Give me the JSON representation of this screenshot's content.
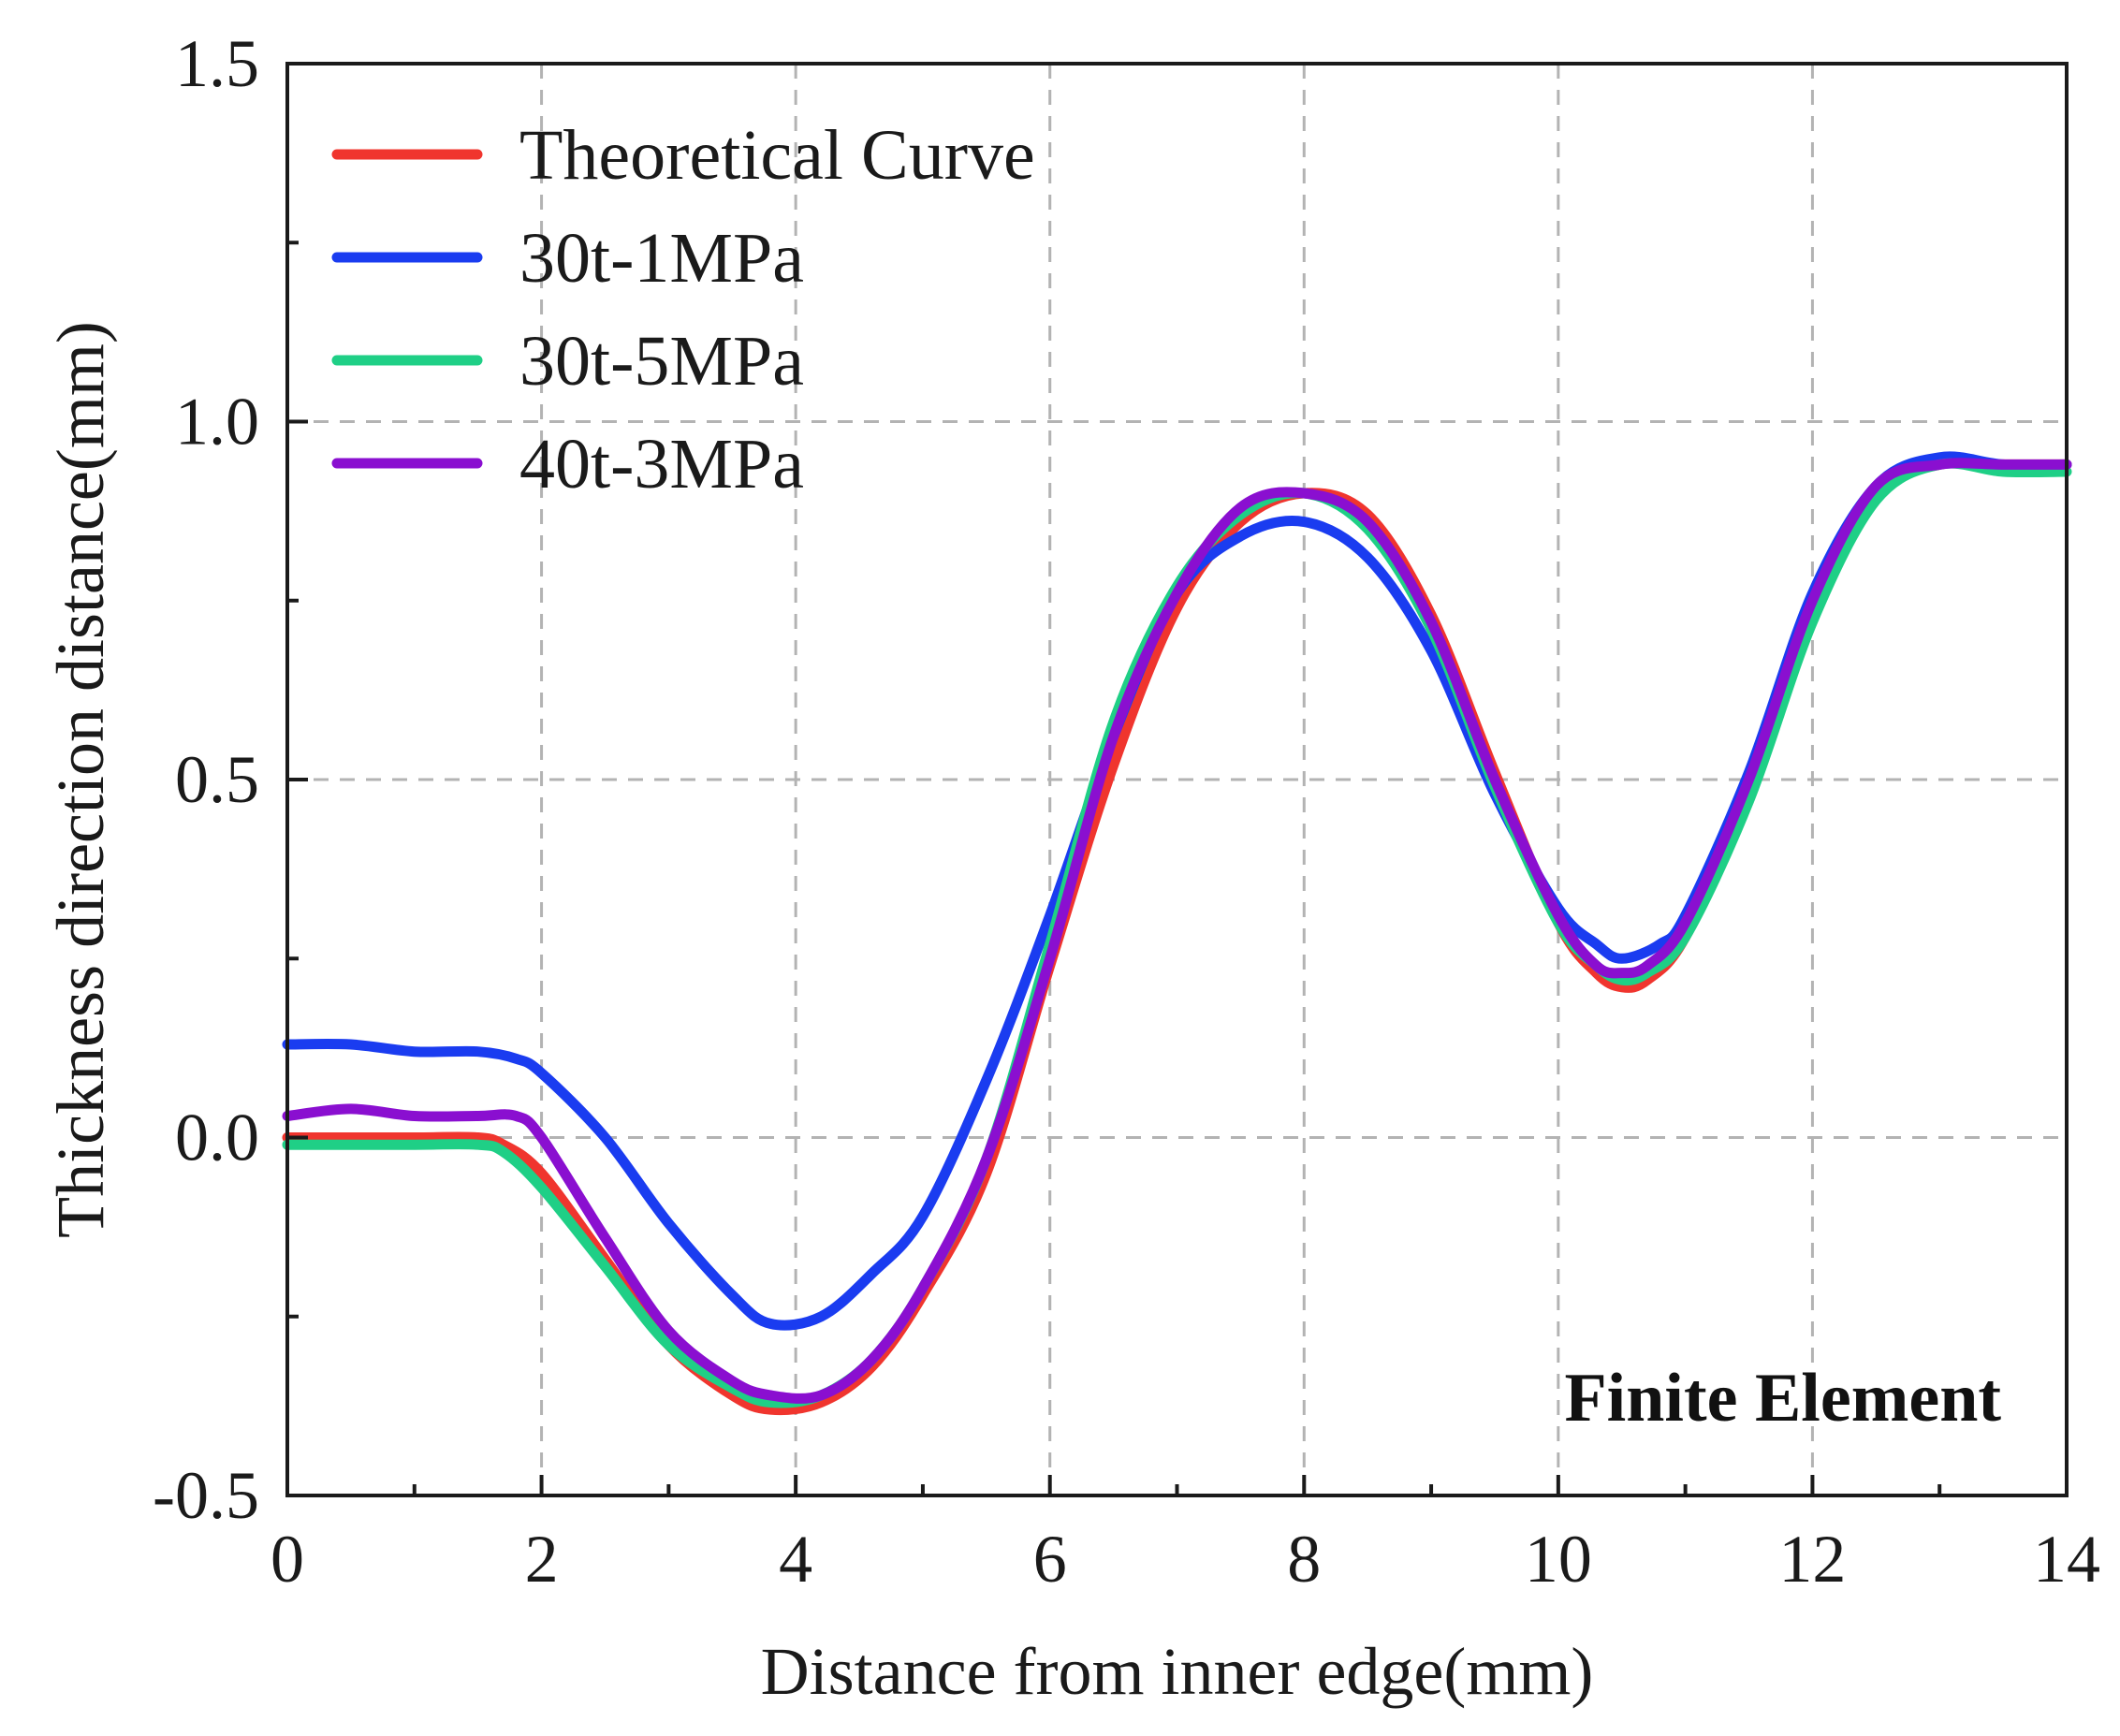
{
  "chart_data": {
    "type": "line",
    "title": "",
    "xlabel": "Distance from inner edge(mm)",
    "ylabel": "Thickness direction distance(mm)",
    "xlim": [
      0,
      14
    ],
    "ylim": [
      -0.5,
      1.5
    ],
    "x_ticks": [
      0,
      2,
      4,
      6,
      8,
      10,
      12,
      14
    ],
    "x_tick_labels": [
      "0",
      "2",
      "4",
      "6",
      "8",
      "10",
      "12",
      "14"
    ],
    "y_ticks": [
      -0.5,
      0,
      0.5,
      1,
      1.5
    ],
    "y_tick_labels": [
      "-0.5",
      "0.0",
      "0.5",
      "1.0",
      "1.5"
    ],
    "x_minor_ticks": [
      1,
      3,
      5,
      7,
      9,
      11,
      13
    ],
    "y_minor_ticks": [
      -0.25,
      0.25,
      0.75,
      1.25
    ],
    "grid": true,
    "legend_position": "top-left",
    "annotation": "Finite Element",
    "series": [
      {
        "name": "Theoretical Curve",
        "color": "#f0352e",
        "x": [
          0,
          0.5,
          1,
          1.5,
          1.7,
          2,
          2.5,
          3,
          3.5,
          3.8,
          4.2,
          4.6,
          5,
          5.5,
          6,
          6.5,
          7,
          7.5,
          8,
          8.5,
          9,
          9.5,
          10,
          10.3,
          10.5,
          10.7,
          11,
          11.5,
          12,
          12.5,
          13,
          13.5,
          14
        ],
        "y": [
          0.0,
          0.0,
          0.0,
          0.0,
          -0.01,
          -0.05,
          -0.17,
          -0.29,
          -0.36,
          -0.38,
          -0.37,
          -0.32,
          -0.22,
          -0.05,
          0.24,
          0.52,
          0.74,
          0.86,
          0.9,
          0.87,
          0.73,
          0.51,
          0.3,
          0.23,
          0.21,
          0.22,
          0.28,
          0.48,
          0.74,
          0.9,
          0.94,
          0.94,
          0.94
        ]
      },
      {
        "name": "30t-1MPa",
        "color": "#1a3cf0",
        "x": [
          0,
          0.5,
          1,
          1.5,
          1.8,
          2,
          2.5,
          3,
          3.5,
          3.8,
          4.2,
          4.6,
          5,
          5.5,
          6,
          6.5,
          7,
          7.5,
          8,
          8.5,
          9,
          9.5,
          10,
          10.3,
          10.5,
          10.8,
          11,
          11.5,
          12,
          12.5,
          13,
          13.5,
          14
        ],
        "y": [
          0.13,
          0.13,
          0.12,
          0.12,
          0.11,
          0.09,
          0.0,
          -0.12,
          -0.22,
          -0.26,
          -0.25,
          -0.19,
          -0.11,
          0.08,
          0.31,
          0.56,
          0.76,
          0.84,
          0.86,
          0.81,
          0.68,
          0.48,
          0.32,
          0.27,
          0.25,
          0.27,
          0.31,
          0.51,
          0.76,
          0.91,
          0.95,
          0.94,
          0.94
        ]
      },
      {
        "name": "30t-5MPa",
        "color": "#1fcf86",
        "x": [
          0,
          0.5,
          1,
          1.5,
          1.7,
          2,
          2.5,
          3,
          3.5,
          3.8,
          4.2,
          4.6,
          5,
          5.5,
          6,
          6.5,
          7,
          7.5,
          8,
          8.5,
          9,
          9.5,
          10,
          10.3,
          10.5,
          10.7,
          11,
          11.5,
          12,
          12.5,
          13,
          13.5,
          14
        ],
        "y": [
          -0.01,
          -0.01,
          -0.01,
          -0.01,
          -0.02,
          -0.07,
          -0.18,
          -0.29,
          -0.35,
          -0.37,
          -0.36,
          -0.31,
          -0.21,
          -0.03,
          0.27,
          0.58,
          0.77,
          0.87,
          0.9,
          0.85,
          0.71,
          0.49,
          0.3,
          0.24,
          0.22,
          0.23,
          0.28,
          0.47,
          0.72,
          0.89,
          0.94,
          0.93,
          0.93
        ]
      },
      {
        "name": "40t-3MPa",
        "color": "#8a0fd0",
        "x": [
          0,
          0.5,
          1,
          1.5,
          1.8,
          2,
          2.5,
          3,
          3.5,
          3.8,
          4.2,
          4.6,
          5,
          5.5,
          6,
          6.5,
          7,
          7.5,
          8,
          8.5,
          9,
          9.5,
          10,
          10.3,
          10.5,
          10.7,
          11,
          11.5,
          12,
          12.5,
          13,
          13.5,
          14
        ],
        "y": [
          0.03,
          0.04,
          0.03,
          0.03,
          0.03,
          0.0,
          -0.14,
          -0.27,
          -0.34,
          -0.36,
          -0.36,
          -0.31,
          -0.21,
          -0.03,
          0.25,
          0.56,
          0.76,
          0.88,
          0.9,
          0.86,
          0.72,
          0.5,
          0.31,
          0.24,
          0.23,
          0.24,
          0.3,
          0.5,
          0.75,
          0.91,
          0.94,
          0.94,
          0.94
        ]
      }
    ]
  }
}
